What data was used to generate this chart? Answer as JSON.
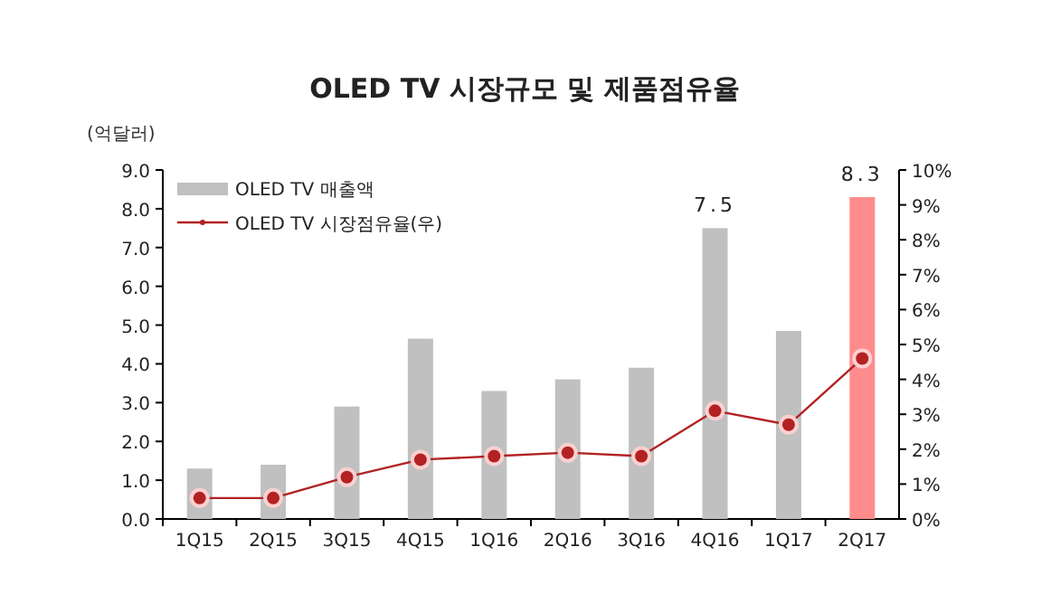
{
  "chart_data": {
    "type": "bar",
    "title": "OLED TV 시장규모 및 제품점유율",
    "ylabel": "(억달러)",
    "categories": [
      "1Q15",
      "2Q15",
      "3Q15",
      "4Q15",
      "1Q16",
      "2Q16",
      "3Q16",
      "4Q16",
      "1Q17",
      "2Q17"
    ],
    "series": [
      {
        "name": "OLED TV 매출액",
        "colors": [
          "#c0c0c0",
          "#c0c0c0",
          "#c0c0c0",
          "#c0c0c0",
          "#c0c0c0",
          "#c0c0c0",
          "#c0c0c0",
          "#c0c0c0",
          "#c0c0c0",
          "#ff8c8c"
        ],
        "values": [
          1.3,
          1.4,
          2.9,
          4.65,
          3.3,
          3.6,
          3.9,
          7.5,
          4.85,
          8.3
        ],
        "value_labels": [
          null,
          null,
          null,
          null,
          null,
          null,
          null,
          "7.5",
          null,
          "8.3"
        ]
      },
      {
        "name": "OLED TV 시장점유율(우)",
        "type": "line",
        "axis": "y2",
        "color": "#b22222",
        "marker": "circle",
        "values": [
          0.6,
          0.6,
          1.2,
          1.7,
          1.8,
          1.9,
          1.8,
          3.1,
          2.7,
          4.6
        ]
      }
    ],
    "ylim": [
      0,
      9
    ],
    "yticks": [
      {
        "value": 0,
        "label": "0.0"
      },
      {
        "value": 1,
        "label": "1.0"
      },
      {
        "value": 2,
        "label": "2.0"
      },
      {
        "value": 3,
        "label": "3.0"
      },
      {
        "value": 4,
        "label": "4.0"
      },
      {
        "value": 5,
        "label": "5.0"
      },
      {
        "value": 6,
        "label": "6.0"
      },
      {
        "value": 7,
        "label": "7.0"
      },
      {
        "value": 8,
        "label": "8.0"
      },
      {
        "value": 9,
        "label": "9.0"
      }
    ],
    "y2lim": [
      0,
      10
    ],
    "y2ticks": [
      {
        "value": 0,
        "label": "0%"
      },
      {
        "value": 1,
        "label": "1%"
      },
      {
        "value": 2,
        "label": "2%"
      },
      {
        "value": 3,
        "label": "3%"
      },
      {
        "value": 4,
        "label": "4%"
      },
      {
        "value": 5,
        "label": "5%"
      },
      {
        "value": 6,
        "label": "6%"
      },
      {
        "value": 7,
        "label": "7%"
      },
      {
        "value": 8,
        "label": "8%"
      },
      {
        "value": 9,
        "label": "9%"
      },
      {
        "value": 10,
        "label": "10%"
      }
    ],
    "legend": "top left"
  }
}
